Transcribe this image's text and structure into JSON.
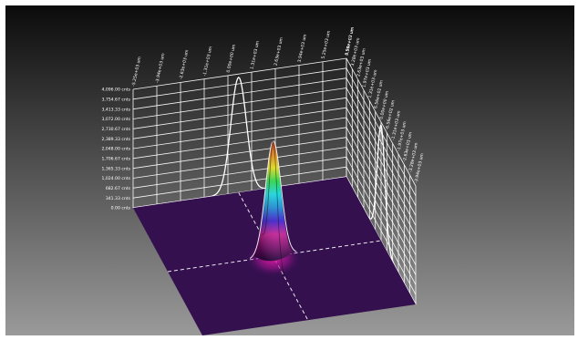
{
  "chart_data": {
    "type": "surface",
    "title": "",
    "z_unit": "cnts",
    "z_ticks": [
      "0.00 cnts",
      "341.33 cnts",
      "682.67 cnts",
      "1,024.00 cnts",
      "1,365.33 cnts",
      "1,706.67 cnts",
      "2,048.00 cnts",
      "2,389.33 cnts",
      "2,730.67 cnts",
      "3,072.00 cnts",
      "3,413.33 cnts",
      "3,754.67 cnts",
      "4,096.00 cnts"
    ],
    "zlim": [
      0,
      4096
    ],
    "x_ticks": [
      "-5.25e+03 um",
      "-3.94e+03 um",
      "-2.63e+03 um",
      "-1.31e+03 um",
      "0.00e+00 um",
      "1.31e+03 um",
      "2.63e+03 um",
      "3.94e+03 um",
      "5.25e+03 um",
      "6.56e+03 um"
    ],
    "xlim": [
      -5250,
      6560
    ],
    "y_ticks": [
      "3.94e+03 um",
      "3.28e+03 um",
      "2.63e+03 um",
      "1.97e+03 um",
      "1.31e+03 um",
      "6.56e+02 um",
      "0.00e+00 um",
      "-6.56e+02 um",
      "-1.31e+03 um",
      "-1.97e+03 um",
      "-2.63e+03 um",
      "-3.28e+03 um",
      "-3.94e+03 um"
    ],
    "ylim": [
      -3940,
      3940
    ],
    "peak": {
      "x": 590,
      "y": 0,
      "z": 3980
    },
    "beam_width": {
      "x": 430,
      "y": 430
    },
    "colormap": [
      "#3b0a5a",
      "#9a0f8a",
      "#e01aa8",
      "#3a1ad8",
      "#1a8ad8",
      "#19d8e0",
      "#2ad84a",
      "#e8e21a",
      "#f08a14",
      "#d8301a"
    ],
    "colors": {
      "background_top": "#0b0b0b",
      "background_bottom": "#9a9a9a",
      "floor": "#34104f",
      "grid": "#ffffff",
      "profile": "#ffffff"
    },
    "grid": true
  }
}
